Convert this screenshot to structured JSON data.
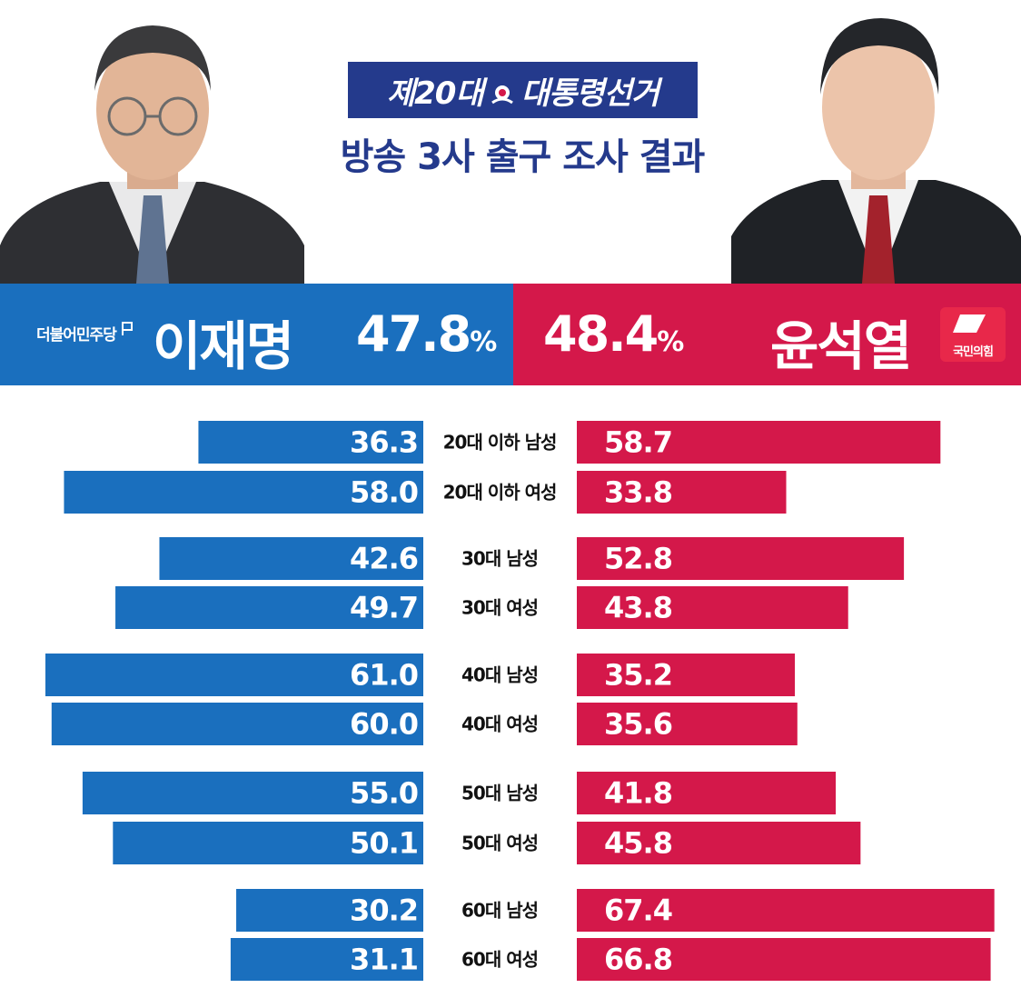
{
  "header": {
    "title_prefix": "제20대",
    "title_suffix": "대통령선거",
    "subtitle": "방송 3사 출구 조사 결과"
  },
  "candidates": {
    "left": {
      "party": "더불어민주당",
      "name": "이재명",
      "percent": "47.8",
      "percent_sign": "%",
      "color": "#1a6fbe"
    },
    "right": {
      "party": "국민의힘",
      "name": "윤석열",
      "percent": "48.4",
      "percent_sign": "%",
      "color": "#d4184a"
    }
  },
  "chart_data": {
    "type": "bar",
    "orientation": "horizontal-diverging",
    "categories": [
      "20대 이하 남성",
      "20대 이하 여성",
      "30대 남성",
      "30대 여성",
      "40대 남성",
      "40대 여성",
      "50대 남성",
      "50대 여성",
      "60대 남성",
      "60대 여성"
    ],
    "series": [
      {
        "name": "이재명",
        "values": [
          36.3,
          58.0,
          42.6,
          49.7,
          61.0,
          60.0,
          55.0,
          50.1,
          30.2,
          31.1
        ],
        "labels": [
          "36.3",
          "58.0",
          "42.6",
          "49.7",
          "61.0",
          "60.0",
          "55.0",
          "50.1",
          "30.2",
          "31.1"
        ],
        "color": "#1a6fbe"
      },
      {
        "name": "윤석열",
        "values": [
          58.7,
          33.8,
          52.8,
          43.8,
          35.2,
          35.6,
          41.8,
          45.8,
          67.4,
          66.8
        ],
        "labels": [
          "58.7",
          "33.8",
          "52.8",
          "43.8",
          "35.2",
          "35.6",
          "41.8",
          "45.8",
          "67.4",
          "66.8"
        ],
        "color": "#d4184a"
      }
    ],
    "grid": false,
    "legend": "none"
  }
}
